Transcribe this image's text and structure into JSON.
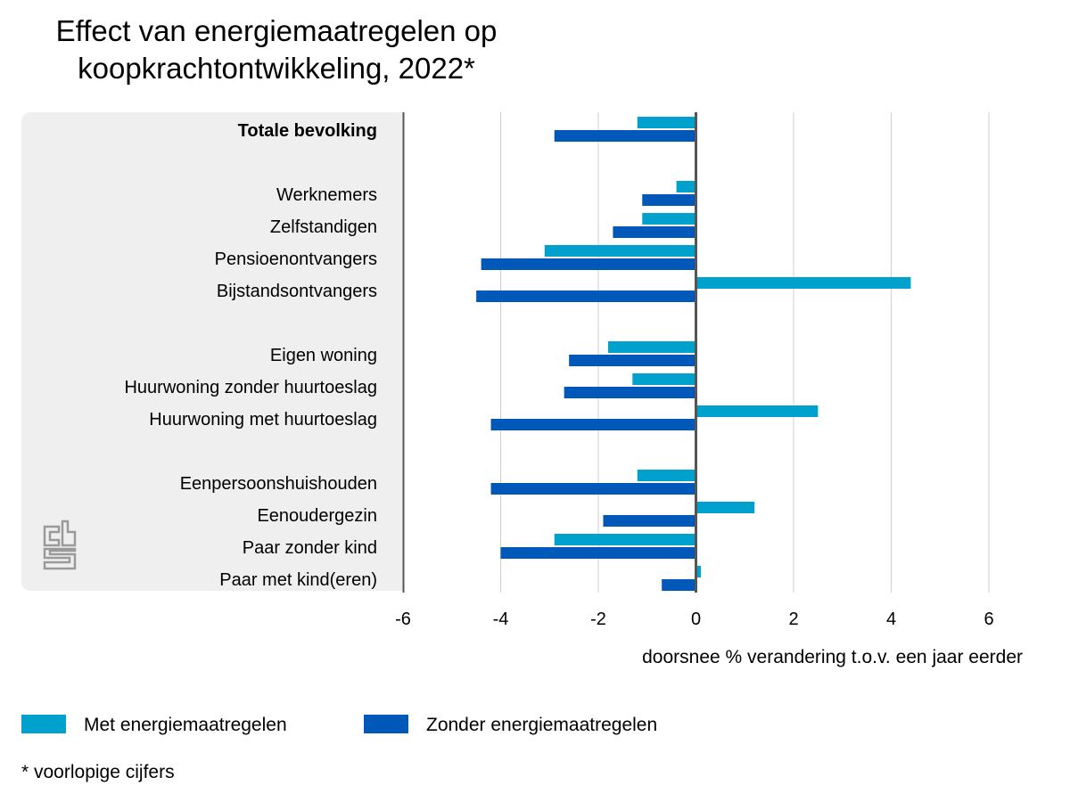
{
  "chart_data": {
    "type": "bar",
    "orientation": "horizontal",
    "title": "Effect van energiemaatregelen op koopkrachtontwikkeling, 2022*",
    "xlabel": "doorsnee % verandering t.o.v. een jaar eerder",
    "xlim": [
      -6,
      6
    ],
    "xticks": [
      "-6",
      "-4",
      "-2",
      "0",
      "2",
      "4",
      "6"
    ],
    "grid": true,
    "legend_position": "bottom",
    "colors": {
      "met": "#00a1cd",
      "zonder": "#0058b8"
    },
    "categories": [
      "Totale bevolking",
      "Werknemers",
      "Zelfstandigen",
      "Pensioenontvangers",
      "Bijstandsontvangers",
      "Eigen woning",
      "Huurwoning zonder huurtoeslag",
      "Huurwoning met huurtoeslag",
      "Eenpersoonshuishouden",
      "Eenoudergezin",
      "Paar zonder kind",
      "Paar met kind(eren)"
    ],
    "series": [
      {
        "name": "Met energiemaatregelen",
        "values": [
          -1.2,
          -0.4,
          -1.1,
          -3.1,
          4.4,
          -1.8,
          -1.3,
          2.5,
          -1.2,
          1.2,
          -2.9,
          0.1
        ]
      },
      {
        "name": "Zonder energiemaatregelen",
        "values": [
          -2.9,
          -1.1,
          -1.7,
          -4.4,
          -4.5,
          -2.6,
          -2.7,
          -4.2,
          -4.2,
          -1.9,
          -4.0,
          -0.7
        ]
      }
    ]
  },
  "footnote": "* voorlopige cijfers"
}
